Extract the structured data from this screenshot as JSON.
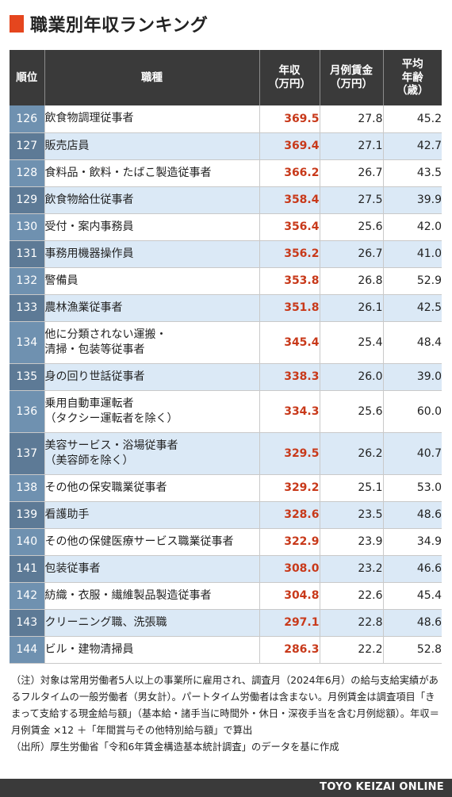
{
  "title": "職業別年収ランキング",
  "headers": {
    "rank": "順位",
    "job": "職種",
    "income": [
      "年収",
      "（万円）"
    ],
    "wage": [
      "月例賃金",
      "（万円）"
    ],
    "age": [
      "平均",
      "年齢",
      "（歳）"
    ]
  },
  "rows": [
    {
      "rank": "126",
      "job": [
        "飲食物調理従事者"
      ],
      "income": "369.5",
      "wage": "27.8",
      "age": "45.2"
    },
    {
      "rank": "127",
      "job": [
        "販売店員"
      ],
      "income": "369.4",
      "wage": "27.1",
      "age": "42.7"
    },
    {
      "rank": "128",
      "job": [
        "食料品・飲料・たばこ製造従事者"
      ],
      "income": "366.2",
      "wage": "26.7",
      "age": "43.5"
    },
    {
      "rank": "129",
      "job": [
        "飲食物給仕従事者"
      ],
      "income": "358.4",
      "wage": "27.5",
      "age": "39.9"
    },
    {
      "rank": "130",
      "job": [
        "受付・案内事務員"
      ],
      "income": "356.4",
      "wage": "25.6",
      "age": "42.0"
    },
    {
      "rank": "131",
      "job": [
        "事務用機器操作員"
      ],
      "income": "356.2",
      "wage": "26.7",
      "age": "41.0"
    },
    {
      "rank": "132",
      "job": [
        "警備員"
      ],
      "income": "353.8",
      "wage": "26.8",
      "age": "52.9"
    },
    {
      "rank": "133",
      "job": [
        "農林漁業従事者"
      ],
      "income": "351.8",
      "wage": "26.1",
      "age": "42.5"
    },
    {
      "rank": "134",
      "job": [
        "他に分類されない運搬・",
        "清掃・包装等従事者"
      ],
      "income": "345.4",
      "wage": "25.4",
      "age": "48.4"
    },
    {
      "rank": "135",
      "job": [
        "身の回り世話従事者"
      ],
      "income": "338.3",
      "wage": "26.0",
      "age": "39.0"
    },
    {
      "rank": "136",
      "job": [
        "乗用自動車運転者",
        "（タクシー運転者を除く）"
      ],
      "income": "334.3",
      "wage": "25.6",
      "age": "60.0"
    },
    {
      "rank": "137",
      "job": [
        "美容サービス・浴場従事者",
        "（美容師を除く）"
      ],
      "income": "329.5",
      "wage": "26.2",
      "age": "40.7"
    },
    {
      "rank": "138",
      "job": [
        "その他の保安職業従事者"
      ],
      "income": "329.2",
      "wage": "25.1",
      "age": "53.0"
    },
    {
      "rank": "139",
      "job": [
        "看護助手"
      ],
      "income": "328.6",
      "wage": "23.5",
      "age": "48.6"
    },
    {
      "rank": "140",
      "job": [
        "その他の保健医療サービス職業従事者"
      ],
      "income": "322.9",
      "wage": "23.9",
      "age": "34.9"
    },
    {
      "rank": "141",
      "job": [
        "包装従事者"
      ],
      "income": "308.0",
      "wage": "23.2",
      "age": "46.6"
    },
    {
      "rank": "142",
      "job": [
        "紡織・衣服・繊維製品製造従事者"
      ],
      "income": "304.8",
      "wage": "22.6",
      "age": "45.4"
    },
    {
      "rank": "143",
      "job": [
        "クリーニング職、洗張職"
      ],
      "income": "297.1",
      "wage": "22.8",
      "age": "48.6"
    },
    {
      "rank": "144",
      "job": [
        "ビル・建物清掃員"
      ],
      "income": "286.3",
      "wage": "22.2",
      "age": "52.8"
    }
  ],
  "notes": [
    "（注）対象は常用労働者5人以上の事業所に雇用され、調査月（2024年6月）の給与支給実績があるフルタイムの一般労働者（男女計）。パートタイム労働者は含まない。月例賃金は調査項目「きまって支給する現金給与額」（基本給・諸手当に時間外・休日・深夜手当を含む月例総額）。年収＝月例賃金 ×12 ＋「年間賞与その他特別給与額」で算出",
    "（出所）厚生労働省「令和6年賃金構造基本統計調査」のデータを基に作成"
  ],
  "footer": "TOYO KEIZAI ONLINE",
  "colors": {
    "accent": "#e5461e",
    "header_bg": "#3a3a3a",
    "rank_cell_light": "#6f91b0",
    "rank_cell_dark": "#5d7a96",
    "band_blue": "#dbe9f6",
    "income_text": "#c8391a"
  }
}
